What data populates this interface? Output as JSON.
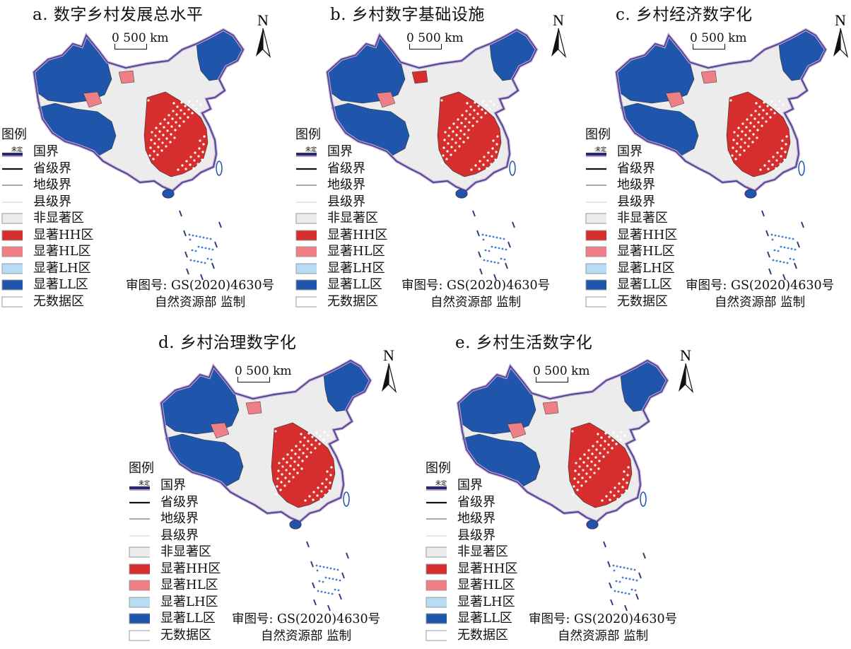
{
  "panels": [
    {
      "id": "a",
      "title": "a. 数字乡村发展总水平",
      "dominant": "HH"
    },
    {
      "id": "b",
      "title": "b. 乡村数字基础设施",
      "dominant": "HH"
    },
    {
      "id": "c",
      "title": "c. 乡村经济数字化",
      "dominant": "HH"
    },
    {
      "id": "d",
      "title": "d. 乡村治理数字化",
      "dominant": "HH"
    },
    {
      "id": "e",
      "title": "e. 乡村生活数字化",
      "dominant": "HH"
    }
  ],
  "scale_label": "0  500 km",
  "north_label": "N",
  "legend": {
    "title": "图例",
    "undetermined_mark": "未定",
    "items": [
      {
        "label": "国界",
        "symbol": "national-border"
      },
      {
        "label": "省级界",
        "symbol": "province-line"
      },
      {
        "label": "地级界",
        "symbol": "prefecture-line"
      },
      {
        "label": "县级界",
        "symbol": "county-line"
      },
      {
        "label": "非显著区",
        "symbol": "fill",
        "color": "#ececec"
      },
      {
        "label": "显著HH区",
        "symbol": "fill",
        "color": "#d62d2d"
      },
      {
        "label": "显著HL区",
        "symbol": "fill",
        "color": "#ef7f86"
      },
      {
        "label": "显著LH区",
        "symbol": "fill",
        "color": "#b6ddf3"
      },
      {
        "label": "显著LL区",
        "symbol": "fill",
        "color": "#1f56ab"
      },
      {
        "label": "无数据区",
        "symbol": "fill",
        "color": "#ffffff"
      }
    ]
  },
  "review": {
    "line1": "审图号: GS(2020)4630号",
    "line2": "自然资源部 监制"
  }
}
